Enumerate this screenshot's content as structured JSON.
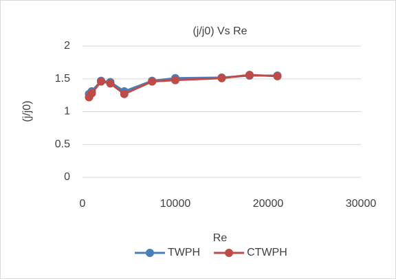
{
  "chart_data": {
    "type": "line",
    "title": "(j/j0) Vs Re",
    "x_label": "Re",
    "y_label": "(j/j0)",
    "x": [
      700,
      1000,
      2000,
      3000,
      4500,
      7500,
      10000,
      15000,
      18000,
      21000
    ],
    "series": [
      {
        "name": "TWPH",
        "color": "#4a7ebb",
        "values": [
          1.27,
          1.31,
          1.47,
          1.45,
          1.31,
          1.47,
          1.51,
          1.52,
          1.55,
          1.55
        ]
      },
      {
        "name": "CTWPH",
        "color": "#be4b48",
        "values": [
          1.22,
          1.28,
          1.46,
          1.43,
          1.27,
          1.46,
          1.48,
          1.51,
          1.56,
          1.54
        ]
      }
    ],
    "xlim": [
      0,
      30000
    ],
    "xticks": [
      0,
      10000,
      20000,
      30000
    ],
    "ylim": [
      0,
      2
    ],
    "yticks": [
      0,
      0.5,
      1,
      1.5,
      2
    ],
    "grid": true,
    "legend": "bottom"
  }
}
